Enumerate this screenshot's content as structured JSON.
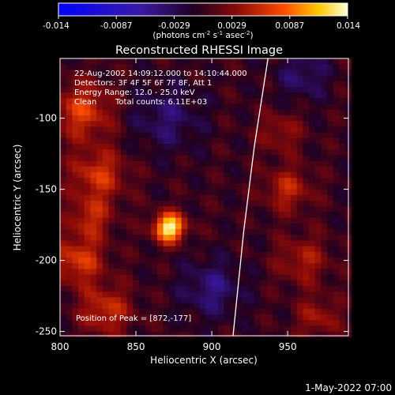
{
  "chart_data": {
    "type": "heatmap",
    "title": "Reconstructed RHESSI Image",
    "xlabel": "Heliocentric X (arcsec)",
    "ylabel": "Heliocentric Y (arcsec)",
    "xlim": [
      800,
      990
    ],
    "ylim": [
      -253,
      -58
    ],
    "x_ticks": [
      800,
      850,
      900,
      950
    ],
    "y_ticks": [
      -100,
      -150,
      -200,
      -250
    ],
    "colorbar": {
      "min": -0.014,
      "max": 0.014,
      "ticks": [
        "-0.014",
        "-0.0087",
        "-0.0029",
        "0.0029",
        "0.0087",
        "0.014"
      ],
      "unit_label": "(photons cm",
      "unit_sup1": "-2",
      "unit_mid": " s",
      "unit_sup2": "-1",
      "unit_mid2": " asec",
      "unit_sup3": "-2",
      "unit_end": ")"
    },
    "annotations": {
      "time_range": "22-Aug-2002 14:09:12.000 to 14:10:44.000",
      "detectors": "Detectors: 3F 4F 5F 6F 7F 8F, Att 1",
      "energy": "Energy Range: 12.0 - 25.0 keV",
      "method": "Clean",
      "total_counts": "Total counts: 6.11E+03",
      "peak_label": "Position of Peak = [872,-177]"
    },
    "peak": {
      "x": 872,
      "y": -177
    },
    "limb": [
      [
        937,
        -58
      ],
      [
        928,
        -120
      ],
      [
        921,
        -180
      ],
      [
        914,
        -253
      ]
    ],
    "sources": [
      {
        "x": 872,
        "y": -177,
        "amp": 1.0,
        "sigma": 7
      },
      {
        "x": 815,
        "y": -95,
        "amp": 0.45,
        "sigma": 14
      },
      {
        "x": 825,
        "y": -140,
        "amp": 0.42,
        "sigma": 13
      },
      {
        "x": 812,
        "y": -200,
        "amp": 0.45,
        "sigma": 12
      },
      {
        "x": 830,
        "y": -235,
        "amp": 0.4,
        "sigma": 12
      },
      {
        "x": 820,
        "y": -170,
        "amp": 0.35,
        "sigma": 10
      },
      {
        "x": 950,
        "y": -150,
        "amp": 0.35,
        "sigma": 11
      },
      {
        "x": 960,
        "y": -200,
        "amp": 0.3,
        "sigma": 12
      },
      {
        "x": 945,
        "y": -110,
        "amp": 0.25,
        "sigma": 10
      },
      {
        "x": 970,
        "y": -240,
        "amp": 0.28,
        "sigma": 10
      },
      {
        "x": 870,
        "y": -100,
        "amp": -0.25,
        "sigma": 16
      },
      {
        "x": 900,
        "y": -220,
        "amp": -0.3,
        "sigma": 14
      },
      {
        "x": 960,
        "y": -70,
        "amp": -0.25,
        "sigma": 12
      }
    ]
  },
  "footer": {
    "timestamp": "1-May-2022 07:00"
  }
}
